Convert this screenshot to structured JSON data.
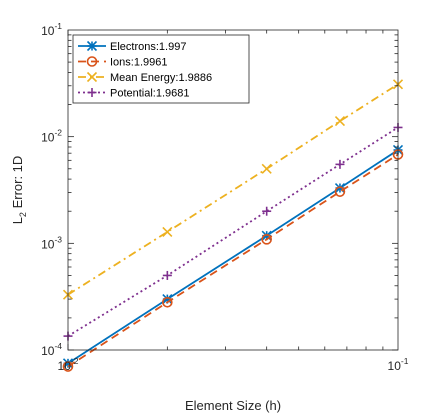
{
  "chart_data": {
    "type": "line",
    "xscale": "log",
    "yscale": "log",
    "xlim": [
      0.01,
      0.1
    ],
    "ylim": [
      0.0001,
      0.1
    ],
    "xlabel": "Element Size (h)",
    "ylabel": "L",
    "ylabel_sub": "2",
    "ylabel_rest": " Error: 1D",
    "grid": false,
    "legend_position": "top-left",
    "x_ticks": [
      {
        "value": 0.01,
        "base": "10",
        "exp": "-2"
      },
      {
        "value": 0.1,
        "base": "10",
        "exp": "-1"
      }
    ],
    "y_ticks": [
      {
        "value": 0.0001,
        "base": "10",
        "exp": "-4"
      },
      {
        "value": 0.001,
        "base": "10",
        "exp": "-3"
      },
      {
        "value": 0.01,
        "base": "10",
        "exp": "-2"
      },
      {
        "value": 0.1,
        "base": "10",
        "exp": "-1"
      }
    ],
    "series": [
      {
        "name": "Electrons:1.997",
        "color": "#0072BD",
        "dash": "solid",
        "marker": "asterisk",
        "x": [
          0.01,
          0.02,
          0.04,
          0.0667,
          0.1
        ],
        "y": [
          7.5e-05,
          0.0003,
          0.00118,
          0.0033,
          0.0075
        ]
      },
      {
        "name": "Ions:1.9961",
        "color": "#D95319",
        "dash": "dashed",
        "marker": "circle",
        "x": [
          0.01,
          0.02,
          0.04,
          0.0667,
          0.1
        ],
        "y": [
          7e-05,
          0.00028,
          0.00109,
          0.00305,
          0.0068
        ]
      },
      {
        "name": "Mean Energy:1.9886",
        "color": "#EDB120",
        "dash": "dashdot",
        "marker": "x",
        "x": [
          0.01,
          0.02,
          0.04,
          0.0667,
          0.1
        ],
        "y": [
          0.00033,
          0.00128,
          0.005,
          0.014,
          0.031
        ]
      },
      {
        "name": "Potential:1.9681",
        "color": "#7E2F8E",
        "dash": "dotted",
        "marker": "plus",
        "x": [
          0.01,
          0.02,
          0.04,
          0.0667,
          0.1
        ],
        "y": [
          0.000135,
          0.0005,
          0.002,
          0.0055,
          0.0122
        ]
      }
    ]
  }
}
